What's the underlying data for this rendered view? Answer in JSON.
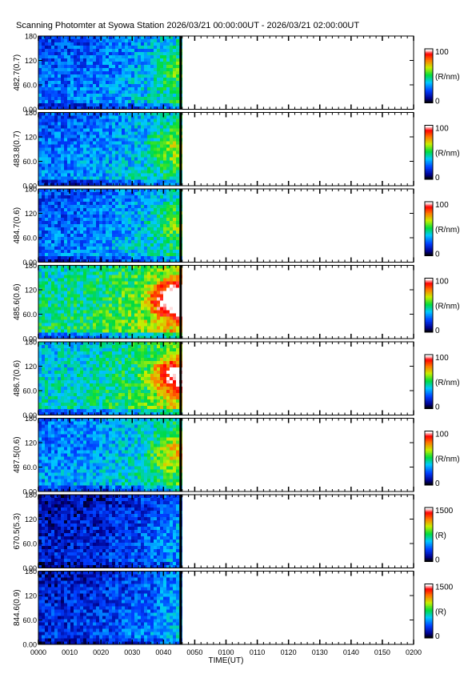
{
  "chart_data": {
    "type": "heatmap",
    "title": "Scanning Photomter at Syowa Station 2026/03/21 00:00:00UT - 2026/03/21 02:00:00UT",
    "xlabel": "TIME(UT)",
    "x_ticks": [
      "0000",
      "0010",
      "0020",
      "0030",
      "0040",
      "0050",
      "0100",
      "0110",
      "0120",
      "0130",
      "0140",
      "0150",
      "0200"
    ],
    "x_range_minutes": [
      0,
      120
    ],
    "data_end_minutes": 45.5,
    "y_ticks": [
      "0.00",
      "60.0",
      "120",
      "180"
    ],
    "y_range": [
      0,
      180
    ],
    "panels": [
      {
        "channel": "482.7(0.7)",
        "colorbar_min": "0",
        "colorbar_max": "100",
        "unit": "(R/nm)",
        "intensity": 0.35,
        "hotspot": 0.2
      },
      {
        "channel": "483.8(0.7)",
        "colorbar_min": "0",
        "colorbar_max": "100",
        "unit": "(R/nm)",
        "intensity": 0.38,
        "hotspot": 0.3
      },
      {
        "channel": "484.7(0.6)",
        "colorbar_min": "0",
        "colorbar_max": "100",
        "unit": "(R/nm)",
        "intensity": 0.36,
        "hotspot": 0.25
      },
      {
        "channel": "485.6(0.6)",
        "colorbar_min": "0",
        "colorbar_max": "100",
        "unit": "(R/nm)",
        "intensity": 0.62,
        "hotspot": 0.95
      },
      {
        "channel": "486.7(0.6)",
        "colorbar_min": "0",
        "colorbar_max": "100",
        "unit": "(R/nm)",
        "intensity": 0.55,
        "hotspot": 0.75
      },
      {
        "channel": "487.5(0.6)",
        "colorbar_min": "0",
        "colorbar_max": "100",
        "unit": "(R/nm)",
        "intensity": 0.42,
        "hotspot": 0.4
      },
      {
        "channel": "670.5(5.3)",
        "colorbar_min": "0",
        "colorbar_max": "1500",
        "unit": "(R)",
        "intensity": 0.2,
        "hotspot": 0.05
      },
      {
        "channel": "844.6(0.9)",
        "colorbar_min": "0",
        "colorbar_max": "1500",
        "unit": "(R)",
        "intensity": 0.24,
        "hotspot": 0.0
      }
    ]
  }
}
